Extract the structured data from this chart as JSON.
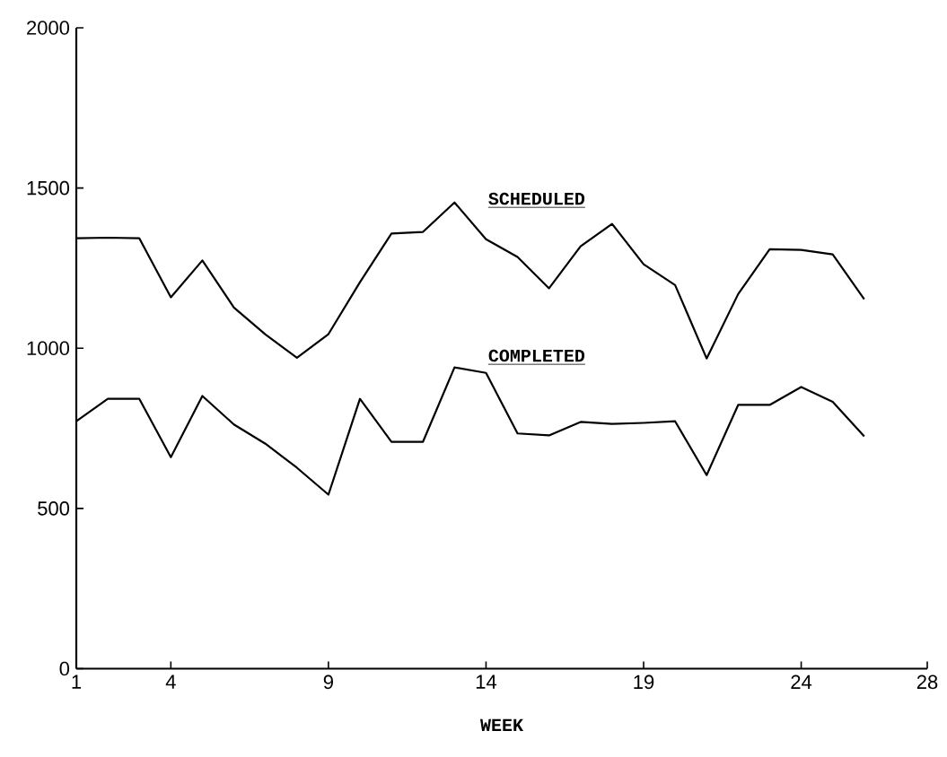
{
  "chart_data": {
    "type": "line",
    "xlabel": "WEEK",
    "x": [
      1,
      2,
      3,
      4,
      5,
      6,
      7,
      8,
      9,
      10,
      11,
      12,
      13,
      14,
      15,
      16,
      17,
      18,
      19,
      20,
      21,
      22,
      23,
      24,
      25,
      26
    ],
    "series": [
      {
        "name": "SCHEDULED",
        "color": "#000000",
        "values": [
          1343,
          1345,
          1343,
          1159,
          1274,
          1127,
          1043,
          970,
          1044,
          1206,
          1358,
          1363,
          1455,
          1340,
          1285,
          1187,
          1318,
          1388,
          1262,
          1197,
          968,
          1169,
          1309,
          1307,
          1293,
          1153
        ]
      },
      {
        "name": "COMPLETED",
        "color": "#000000",
        "values": [
          772,
          842,
          842,
          660,
          851,
          762,
          702,
          627,
          543,
          842,
          708,
          708,
          940,
          923,
          734,
          728,
          770,
          764,
          767,
          772,
          604,
          823,
          823,
          879,
          833,
          725
        ]
      }
    ],
    "xlim": [
      1,
      28
    ],
    "xticks": [
      1,
      4,
      9,
      14,
      19,
      24,
      28
    ],
    "ylim": [
      0,
      2000
    ],
    "yticks": [
      0,
      500,
      1000,
      1500,
      2000
    ],
    "grid": false,
    "legend": false,
    "marker": "none",
    "line_style": "solid"
  }
}
